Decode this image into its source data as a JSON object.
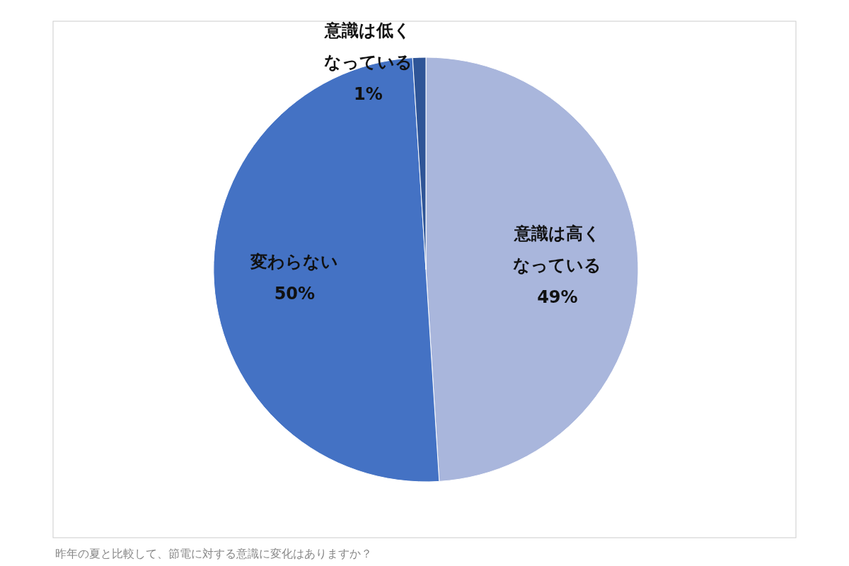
{
  "chart_data": {
    "type": "pie",
    "categories": [
      "意識は高くなっている",
      "変わらない",
      "意識は低くなっている"
    ],
    "values": [
      49,
      50,
      1
    ],
    "value_labels": [
      "49%",
      "50%",
      "1%"
    ],
    "colors": [
      "#a9b6dc",
      "#4472c4",
      "#2f5597"
    ],
    "annotations": [
      "昨年の夏と比較して、節電に対する意識に変化はありますか？"
    ]
  }
}
